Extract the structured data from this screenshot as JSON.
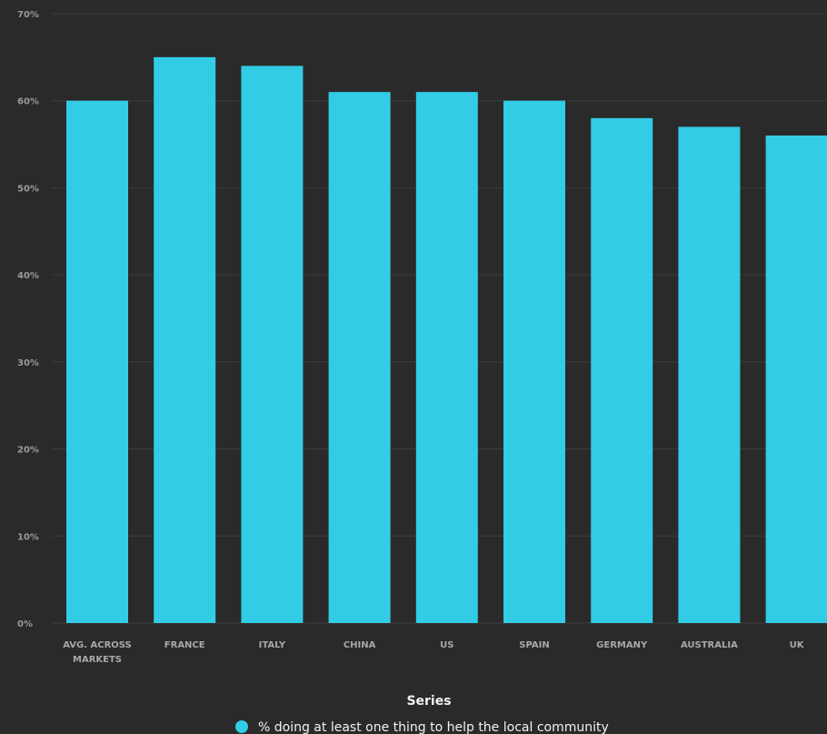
{
  "chart_data": {
    "type": "bar",
    "categories": [
      "AVG. ACROSS MARKETS",
      "FRANCE",
      "ITALY",
      "CHINA",
      "US",
      "SPAIN",
      "GERMANY",
      "AUSTRALIA",
      "UK"
    ],
    "category_lines": [
      [
        "AVG. ACROSS",
        "MARKETS"
      ],
      [
        "FRANCE"
      ],
      [
        "ITALY"
      ],
      [
        "CHINA"
      ],
      [
        "US"
      ],
      [
        "SPAIN"
      ],
      [
        "GERMANY"
      ],
      [
        "AUSTRALIA"
      ],
      [
        "UK"
      ]
    ],
    "series": [
      {
        "name": "% doing at least one thing to help the local community",
        "color": "#33cce6",
        "values": [
          60,
          65,
          64,
          61,
          61,
          60,
          58,
          57,
          56
        ]
      }
    ],
    "yticks": [
      "0%",
      "10%",
      "20%",
      "30%",
      "40%",
      "50%",
      "60%",
      "70%"
    ],
    "ylim": [
      0,
      70
    ],
    "grid": true,
    "legend": {
      "title": "Series",
      "placement": "bottom"
    },
    "background": "#2a2a2a"
  }
}
